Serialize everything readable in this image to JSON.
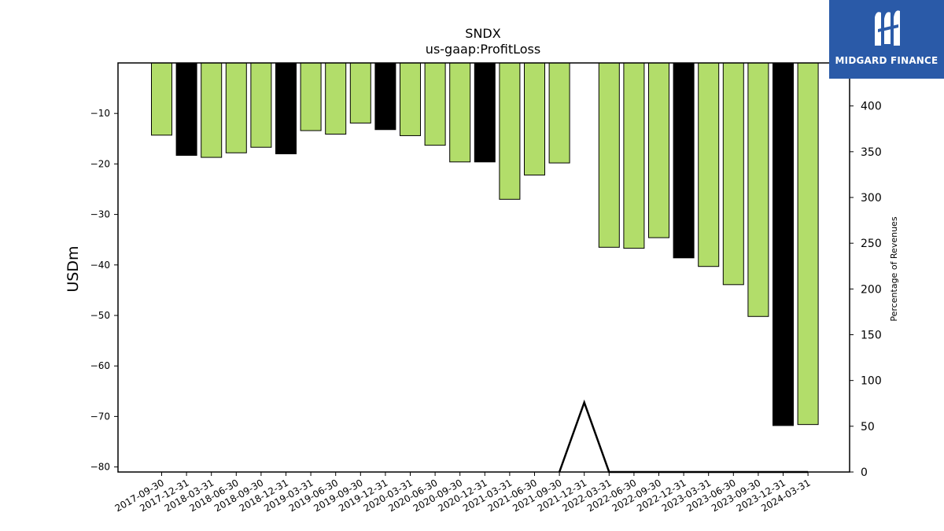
{
  "brand": {
    "name": "MIDGARD FINANCE",
    "color": "#2a5aa8"
  },
  "chart_data": {
    "type": "bar",
    "title": "SNDX",
    "subtitle": "us-gaap:ProfitLoss",
    "ylabel": "USDm",
    "y2label": "Percentage of Revenues",
    "ylim": [
      -81,
      0
    ],
    "y2lim": [
      0,
      447
    ],
    "yticks": [
      -10,
      -20,
      -30,
      -40,
      -50,
      -60,
      -70,
      -80
    ],
    "y2ticks": [
      0,
      50,
      100,
      150,
      200,
      250,
      300,
      350,
      400
    ],
    "colors": {
      "quarter": "#b2dd6a",
      "year_end": "#000000",
      "line": "#000000"
    },
    "categories": [
      "2017-09-30",
      "2017-12-31",
      "2018-03-31",
      "2018-06-30",
      "2018-09-30",
      "2018-12-31",
      "2019-03-31",
      "2019-06-30",
      "2019-09-30",
      "2019-12-31",
      "2020-03-31",
      "2020-06-30",
      "2020-09-30",
      "2020-12-31",
      "2021-03-31",
      "2021-06-30",
      "2021-09-30",
      "2021-12-31",
      "2022-03-31",
      "2022-06-30",
      "2022-09-30",
      "2022-12-31",
      "2023-03-31",
      "2023-06-30",
      "2023-09-30",
      "2023-12-31",
      "2024-03-31"
    ],
    "series": [
      {
        "kind": "bar",
        "values": [
          -14.3,
          -18.3,
          -18.7,
          -17.8,
          -16.7,
          -18.0,
          -13.4,
          -14.1,
          -11.9,
          -13.2,
          -14.4,
          -16.3,
          -19.6,
          -19.6,
          -27.0,
          -22.2,
          -19.8,
          null,
          -36.5,
          -36.7,
          -34.6,
          -38.6,
          -40.3,
          -43.9,
          -50.2,
          -71.8,
          -71.6
        ],
        "year_end": [
          false,
          true,
          false,
          false,
          false,
          true,
          false,
          false,
          false,
          true,
          false,
          false,
          false,
          true,
          false,
          false,
          false,
          true,
          false,
          false,
          false,
          true,
          false,
          false,
          false,
          true,
          false
        ]
      },
      {
        "kind": "line",
        "axis": "right",
        "values": [
          null,
          null,
          null,
          null,
          null,
          null,
          null,
          null,
          null,
          null,
          null,
          null,
          null,
          null,
          null,
          null,
          0,
          76,
          0,
          0,
          0,
          0,
          0,
          0,
          0,
          0,
          0
        ]
      }
    ]
  }
}
